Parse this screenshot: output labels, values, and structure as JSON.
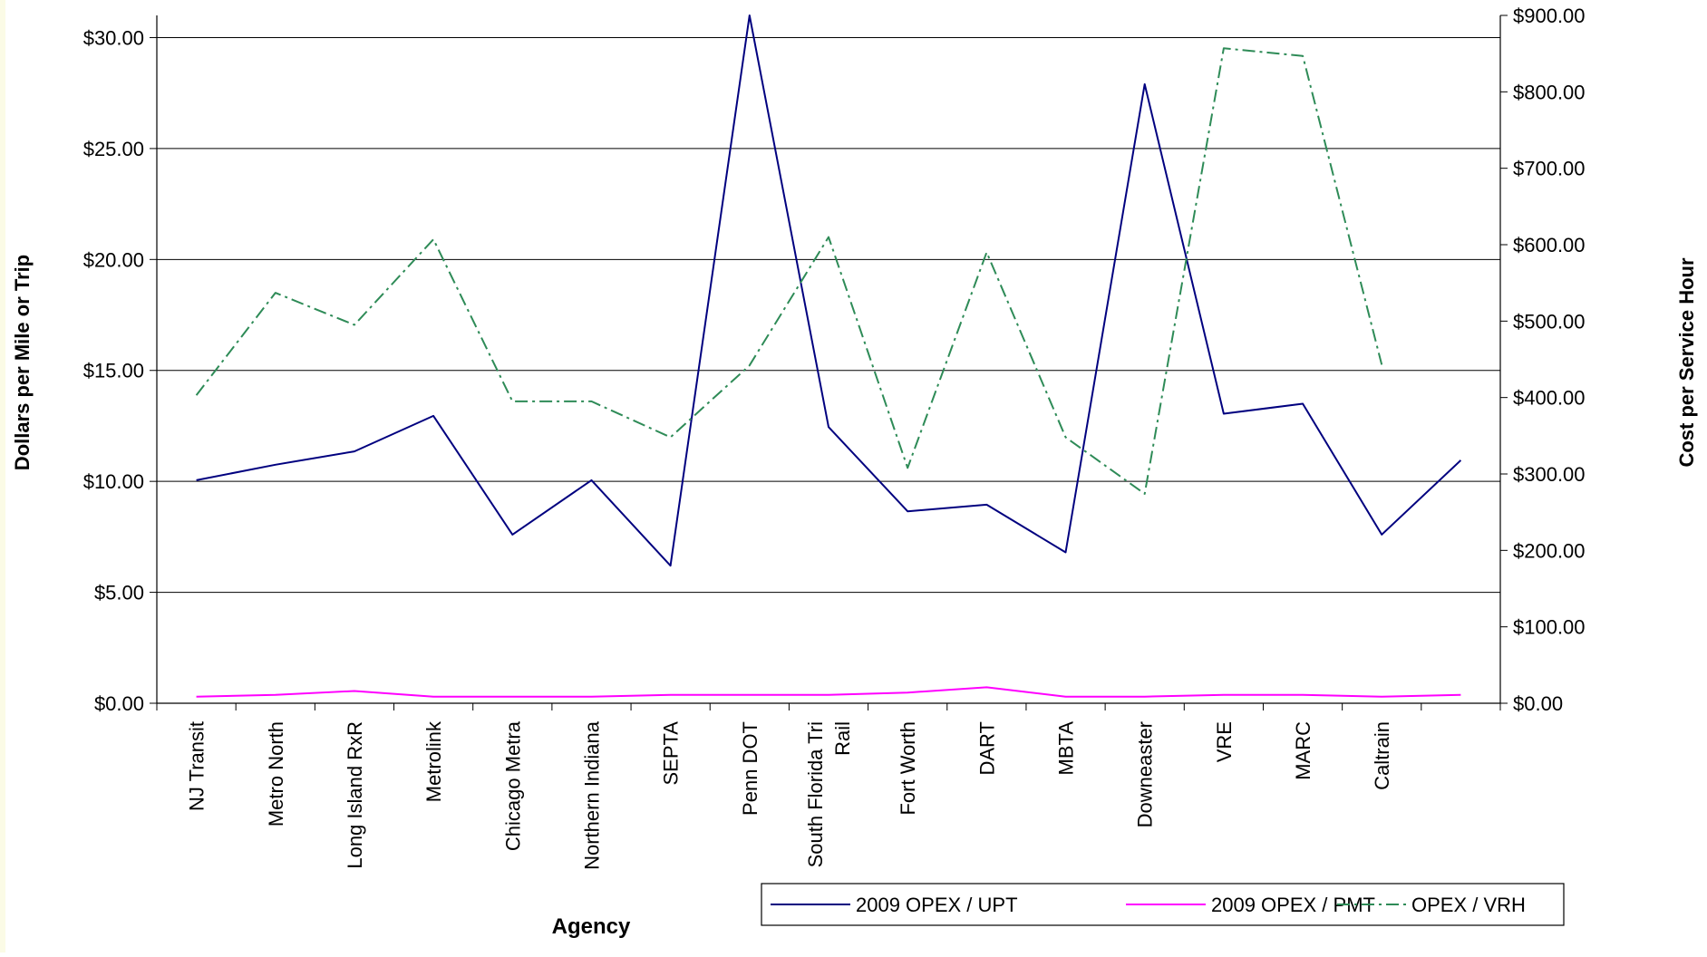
{
  "chart_data": {
    "type": "line",
    "title": "",
    "xlabel": "Agency",
    "ylabel": "Dollars per Mile or Trip",
    "y2label": "Cost  per Service Hour",
    "ylim": [
      0,
      31
    ],
    "y2lim": [
      0,
      900
    ],
    "yticks": [
      0,
      5,
      10,
      15,
      20,
      25,
      30
    ],
    "ytick_labels": [
      "$0.00",
      "$5.00",
      "$10.00",
      "$15.00",
      "$20.00",
      "$25.00",
      "$30.00"
    ],
    "y2ticks": [
      0,
      100,
      200,
      300,
      400,
      500,
      600,
      700,
      800,
      900
    ],
    "y2tick_labels": [
      "$0.00",
      "$100.00",
      "$200.00",
      "$300.00",
      "$400.00",
      "$500.00",
      "$600.00",
      "$700.00",
      "$800.00",
      "$900.00"
    ],
    "grid": "horizontal major gridlines on left axis",
    "legend_position": "bottom-right",
    "categories": [
      "NJ Transit",
      "Metro North",
      "Long Island RxR",
      "Metrolink",
      "Chicago Metra",
      "Northern Indiana",
      "SEPTA",
      "Penn DOT",
      "South Florida Tri Rail",
      "Fort Worth",
      "DART",
      "MBTA",
      "Downeaster",
      "VRE",
      "MARC",
      "Caltrain",
      ""
    ],
    "series": [
      {
        "name": "2009 OPEX / UPT",
        "axis": "left",
        "color": "#00007f",
        "style": "solid",
        "values": [
          10.05,
          10.75,
          11.35,
          12.95,
          7.6,
          10.05,
          6.2,
          31.0,
          12.45,
          8.65,
          8.95,
          6.8,
          27.9,
          13.05,
          13.5,
          7.6,
          10.95
        ]
      },
      {
        "name": "2009 OPEX / PMT",
        "axis": "left",
        "color": "#ff00ff",
        "style": "solid",
        "values": [
          0.3,
          0.38,
          0.55,
          0.3,
          0.3,
          0.3,
          0.38,
          0.38,
          0.38,
          0.48,
          0.72,
          0.3,
          0.3,
          0.38,
          0.38,
          0.3,
          0.38
        ]
      },
      {
        "name": "OPEX / VRH",
        "axis": "right",
        "color": "#2e8b57",
        "style": "dash-dot",
        "values": [
          403,
          537,
          495,
          607,
          395,
          395,
          348,
          442,
          610,
          308,
          590,
          348,
          274,
          857,
          847,
          443,
          null
        ]
      }
    ]
  }
}
